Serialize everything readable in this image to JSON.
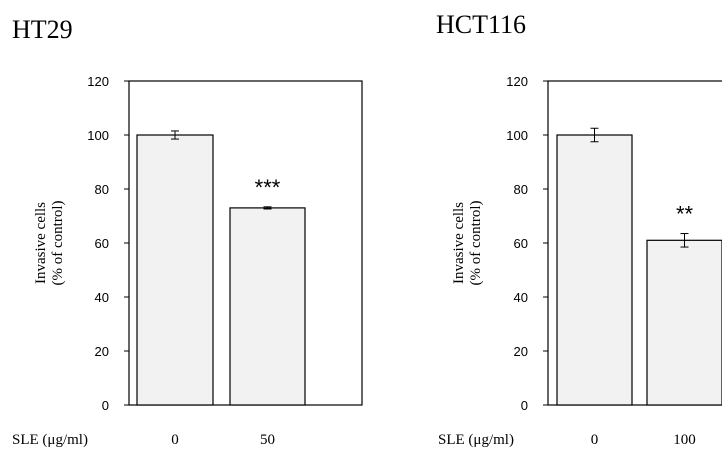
{
  "chart_data": [
    {
      "type": "bar",
      "title": "HT29",
      "ylabel": [
        "Invasive cells",
        "(% of control)"
      ],
      "xlabel": "SLE (μg/ml)",
      "categories": [
        "0",
        "50"
      ],
      "values": [
        100,
        73
      ],
      "errors": [
        1.5,
        0.4
      ],
      "annotations": [
        "",
        "***"
      ],
      "ylim": [
        0,
        120
      ],
      "yticks": [
        "0",
        "20",
        "40",
        "60",
        "80",
        "100",
        "120"
      ],
      "bar_color": "#f2f2f2"
    },
    {
      "type": "bar",
      "title": "HCT116",
      "ylabel": [
        "Invasive cells",
        "(% of control)"
      ],
      "xlabel": "SLE (μg/ml)",
      "categories": [
        "0",
        "100"
      ],
      "values": [
        100,
        61
      ],
      "errors": [
        2.5,
        2.5
      ],
      "annotations": [
        "",
        "**"
      ],
      "ylim": [
        0,
        120
      ],
      "yticks": [
        "0",
        "20",
        "40",
        "60",
        "80",
        "100",
        "120"
      ],
      "bar_color": "#f2f2f2"
    }
  ]
}
